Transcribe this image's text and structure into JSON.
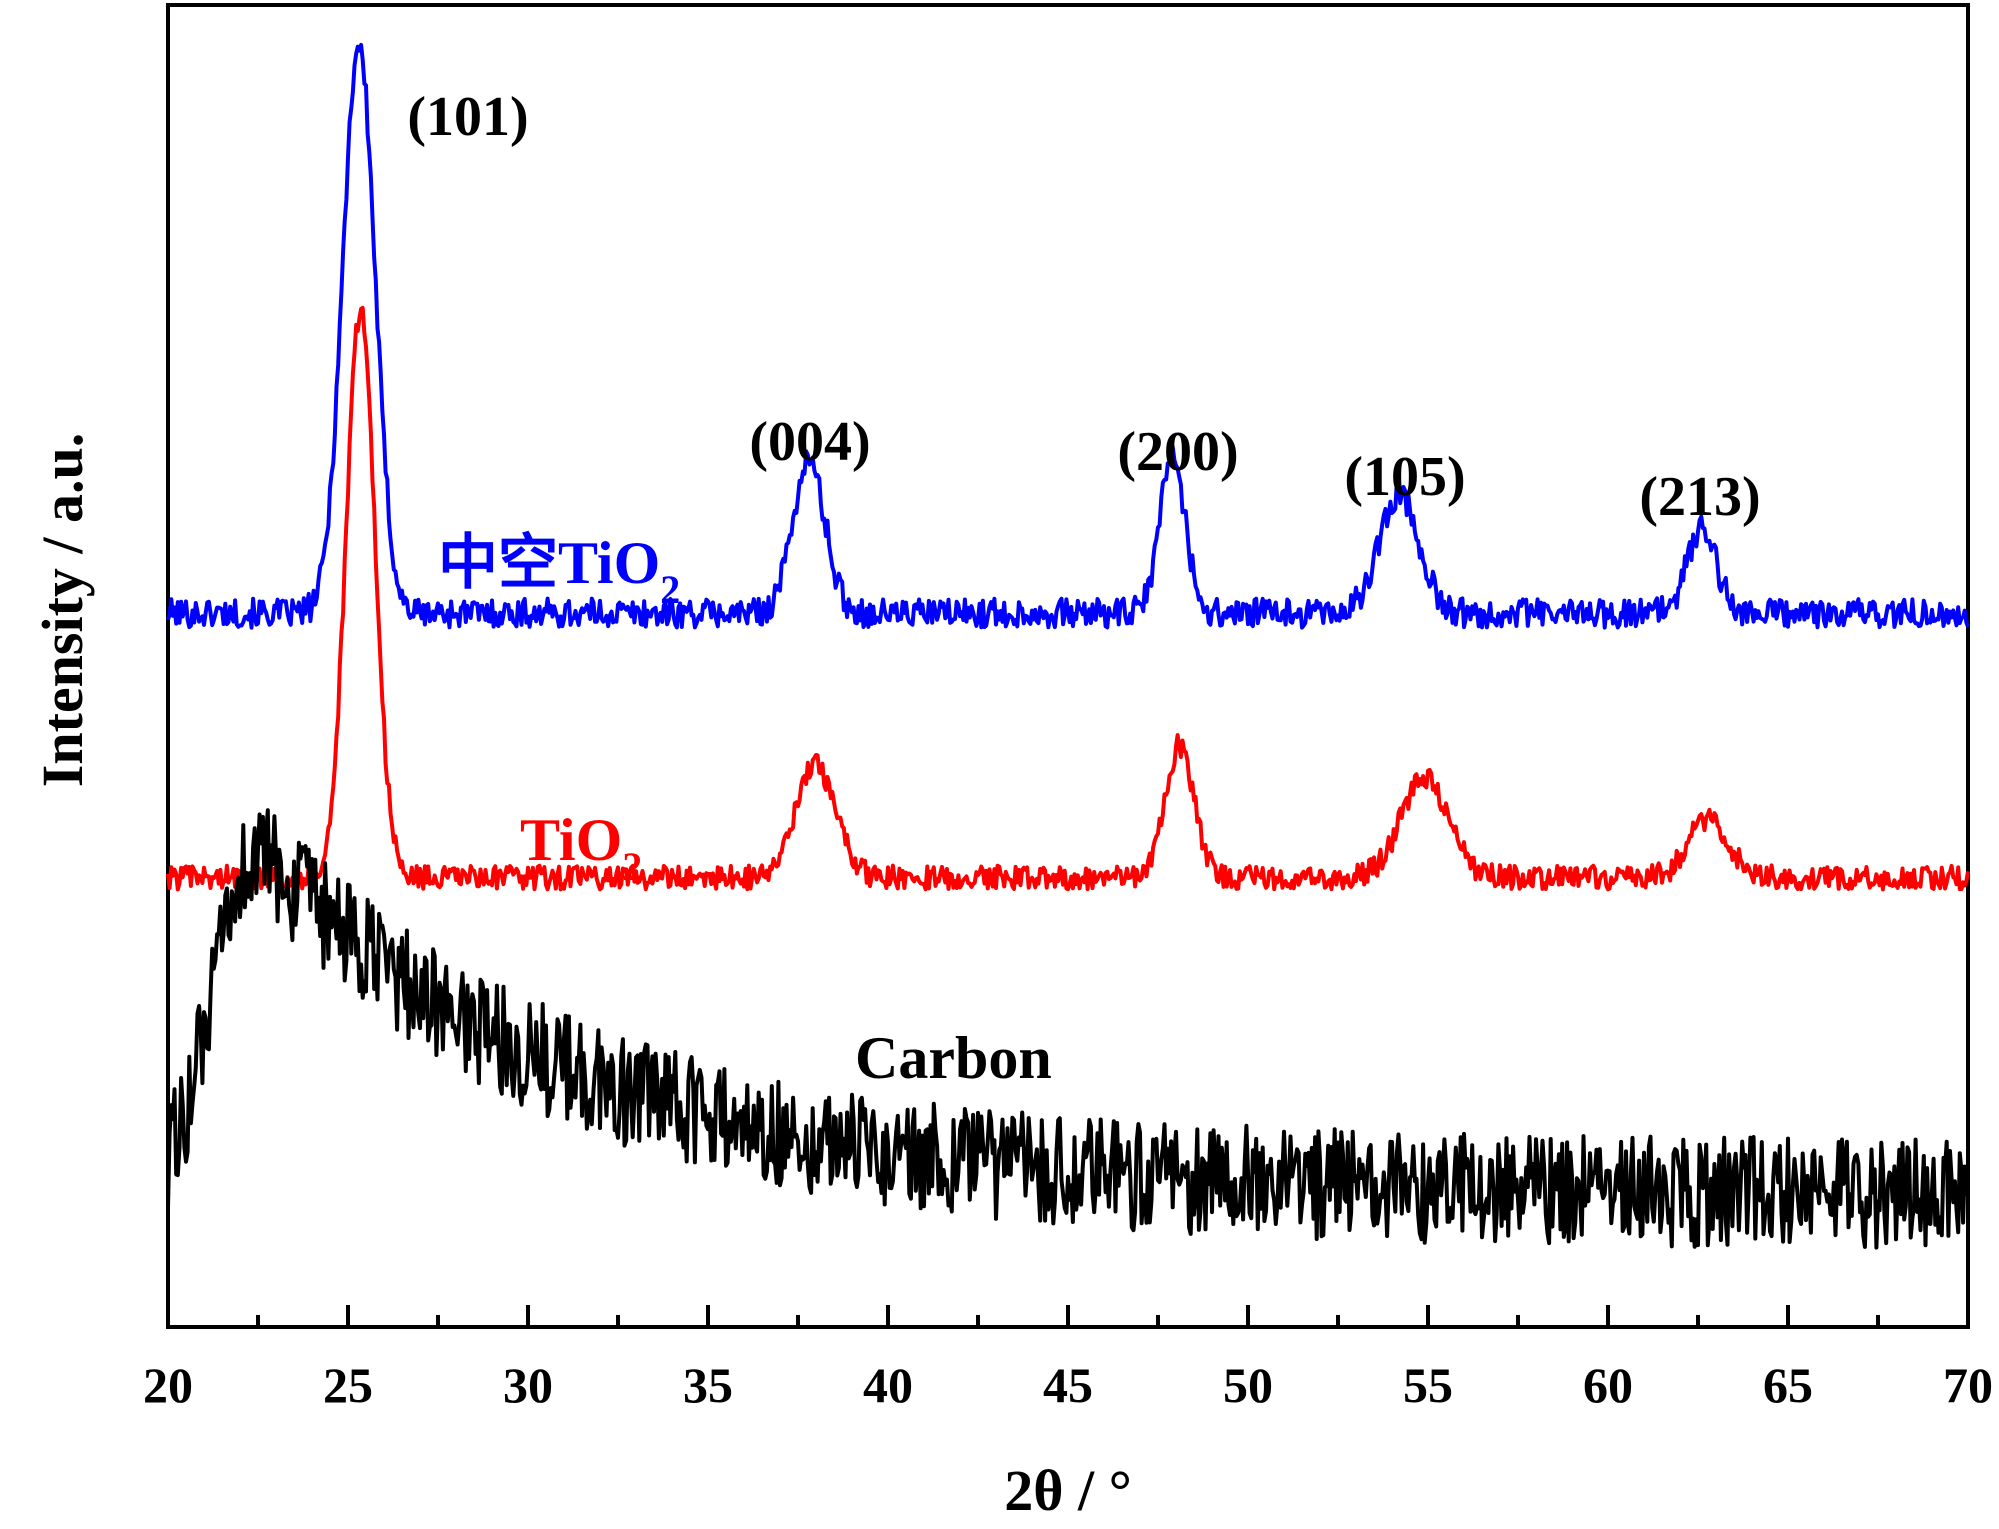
{
  "chart_data": {
    "type": "line",
    "title": "",
    "xlabel": "2θ / °",
    "ylabel": "Intensity / a.u.",
    "xlim": [
      20,
      70
    ],
    "ylim": [
      0,
      100
    ],
    "x_ticks": [
      20,
      25,
      30,
      35,
      40,
      45,
      50,
      55,
      60,
      65,
      70
    ],
    "x_tick_labels": [
      "20",
      "25",
      "30",
      "35",
      "40",
      "45",
      "50",
      "55",
      "60",
      "65",
      "70"
    ],
    "grid": false,
    "legend": "inline labels",
    "colors": {
      "hollow": "#0000ff",
      "tio2": "#ff0000",
      "carbon": "#000000"
    },
    "series": [
      {
        "name": "中空TiO2",
        "label_main": "中空TiO",
        "label_sub": "2",
        "color": "#0000ff",
        "baseline": 54,
        "noise": 1.1,
        "peaks": [
          {
            "center": 25.3,
            "height": 43,
            "width": 0.45
          },
          {
            "center": 37.8,
            "height": 11.5,
            "width": 0.45
          },
          {
            "center": 47.9,
            "height": 12,
            "width": 0.35
          },
          {
            "center": 54.2,
            "height": 9,
            "width": 0.55
          },
          {
            "center": 62.6,
            "height": 6.5,
            "width": 0.4
          }
        ]
      },
      {
        "name": "TiO2",
        "label_main": "TiO",
        "label_sub": "2",
        "color": "#ff0000",
        "baseline": 34,
        "noise": 0.9,
        "peaks": [
          {
            "center": 25.35,
            "height": 43,
            "width": 0.4
          },
          {
            "center": 38.0,
            "height": 8.5,
            "width": 0.55
          },
          {
            "center": 48.1,
            "height": 10,
            "width": 0.4
          },
          {
            "center": 54.9,
            "height": 7.5,
            "width": 0.65
          },
          {
            "center": 62.8,
            "height": 4.5,
            "width": 0.55
          }
        ]
      },
      {
        "name": "Carbon",
        "label_main": "Carbon",
        "color": "#000000",
        "baseline": 10,
        "noise": 4.2,
        "broad_hump": {
          "center": 22.5,
          "height": 26,
          "decay": 8.5
        }
      }
    ],
    "peak_annotations": [
      {
        "label": "(101)",
        "x": 25.3
      },
      {
        "label": "(004)",
        "x": 37.8
      },
      {
        "label": "(200)",
        "x": 47.9
      },
      {
        "label": "(105)",
        "x": 54.2
      },
      {
        "label": "(213)",
        "x": 62.6
      }
    ]
  }
}
